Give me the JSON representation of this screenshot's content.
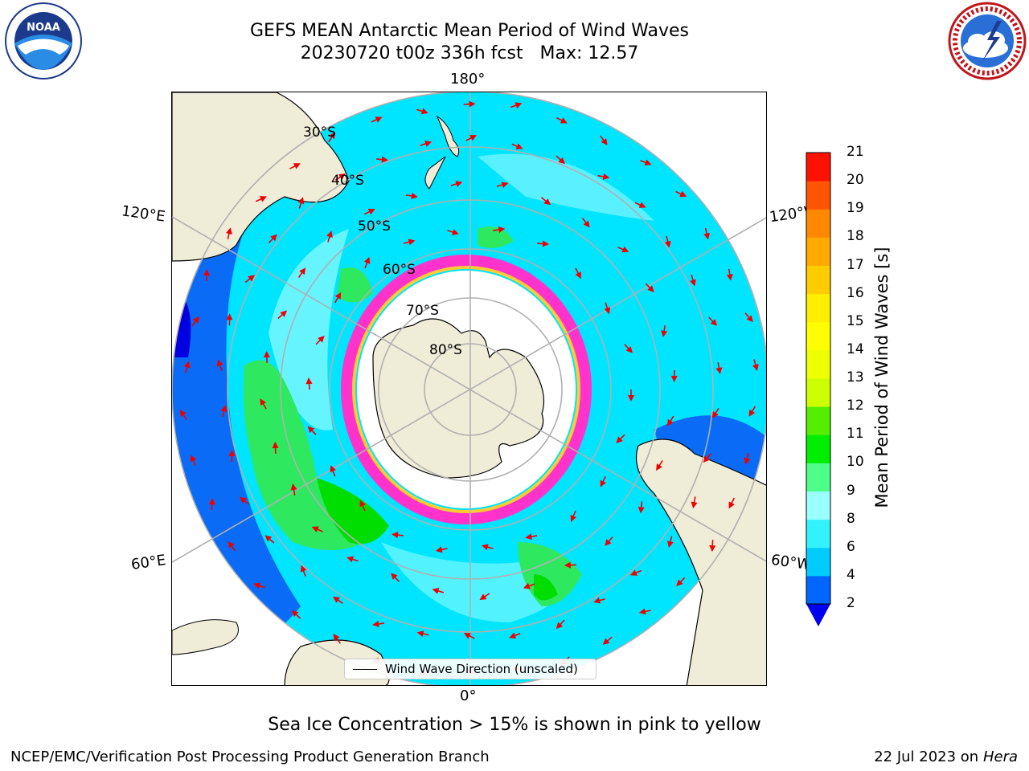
{
  "title_line1": "GEFS MEAN Antarctic Mean Period of Wind Waves",
  "title_line2": "20230720 t00z 336h fcst   Max: 12.57",
  "logos": {
    "left": "noaa-logo",
    "right": "nws-logo",
    "left_text": "NOAA",
    "right_text": "NATIONAL WEATHER SERVICE"
  },
  "lon_labels": {
    "top": "180°",
    "bottom": "0°",
    "left_upper": "120°E",
    "left_lower": "60°E",
    "right_upper": "120°W",
    "right_lower": "60°W"
  },
  "lat_labels": [
    "30°S",
    "40°S",
    "50°S",
    "60°S",
    "70°S",
    "80°S"
  ],
  "legend": {
    "label": "Wind Wave Direction (unscaled)"
  },
  "colorbar": {
    "title": "Mean Period of Wind Waves [s]",
    "ticks": [
      "2",
      "4",
      "6",
      "8",
      "9",
      "10",
      "11",
      "12",
      "13",
      "14",
      "15",
      "16",
      "17",
      "18",
      "19",
      "20",
      "21"
    ],
    "colors": [
      "#0066ff",
      "#00ccff",
      "#33f2ff",
      "#99ffff",
      "#4dff88",
      "#00ee00",
      "#55ee00",
      "#ccff00",
      "#eeff00",
      "#ffff00",
      "#ffee00",
      "#ffcc00",
      "#ffaa00",
      "#ff8800",
      "#ff5500",
      "#ff1100"
    ],
    "extend_color": "#0000ee"
  },
  "caption": "Sea Ice Concentration > 15% is shown in pink to yellow",
  "footer_left": "NCEP/EMC/Verification Post Processing Product Generation Branch",
  "footer_right_prefix": "22 Jul 2023 on ",
  "footer_right_machine": "Hera"
}
